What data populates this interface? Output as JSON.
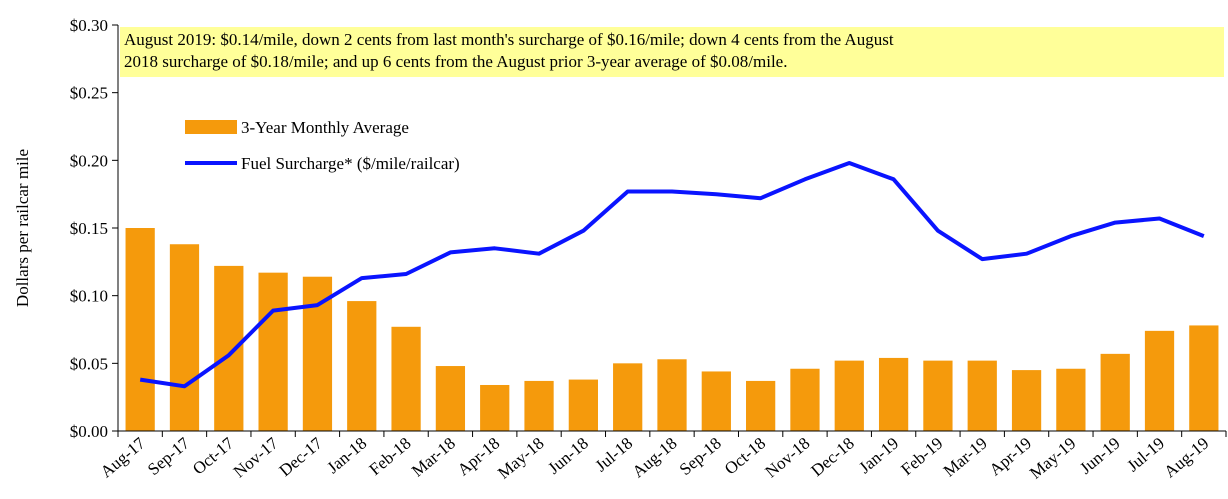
{
  "chart_data": {
    "type": "bar-line",
    "y_axis_label": "Dollars per railcar mile",
    "annotation": [
      "August 2019: $0.14/mile,  down 2 cents from last month's surcharge of $0.16/mile;  down 4 cents from the August",
      "2018 surcharge  of $0.18/mile;  and up 6 cents from the August prior 3-year average  of $0.08/mile."
    ],
    "annotation_color": "#ffff99",
    "categories": [
      "Aug-17",
      "Sep-17",
      "Oct-17",
      "Nov-17",
      "Dec-17",
      "Jan-18",
      "Feb-18",
      "Mar-18",
      "Apr-18",
      "May-18",
      "Jun-18",
      "Jul-18",
      "Aug-18",
      "Sep-18",
      "Oct-18",
      "Nov-18",
      "Dec-18",
      "Jan-19",
      "Feb-19",
      "Mar-19",
      "Apr-19",
      "May-19",
      "Jun-19",
      "Jul-19",
      "Aug-19"
    ],
    "series": [
      {
        "name": "3-Year Monthly Average",
        "kind": "bar",
        "color": "#f59a0c",
        "values": [
          0.15,
          0.138,
          0.122,
          0.117,
          0.114,
          0.096,
          0.077,
          0.048,
          0.034,
          0.037,
          0.038,
          0.05,
          0.053,
          0.044,
          0.037,
          0.046,
          0.052,
          0.054,
          0.052,
          0.052,
          0.045,
          0.046,
          0.057,
          0.074,
          0.078
        ]
      },
      {
        "name": "Fuel Surcharge* ($/mile/railcar)",
        "kind": "line",
        "color": "#0a14ff",
        "values": [
          0.038,
          0.033,
          0.056,
          0.089,
          0.093,
          0.113,
          0.116,
          0.132,
          0.135,
          0.131,
          0.148,
          0.177,
          0.177,
          0.175,
          0.172,
          0.186,
          0.198,
          0.186,
          0.148,
          0.127,
          0.131,
          0.144,
          0.154,
          0.157,
          0.144
        ]
      }
    ],
    "ylim": [
      0,
      0.3
    ],
    "yticks": [
      {
        "value": 0,
        "label": "$0.00"
      },
      {
        "value": 0.05,
        "label": "$0.05"
      },
      {
        "value": 0.1,
        "label": "$0.10"
      },
      {
        "value": 0.15,
        "label": "$0.15"
      },
      {
        "value": 0.2,
        "label": "$0.20"
      },
      {
        "value": 0.25,
        "label": "$0.25"
      },
      {
        "value": 0.3,
        "label": "$0.30"
      }
    ],
    "grid": false,
    "legend": "upper left"
  }
}
